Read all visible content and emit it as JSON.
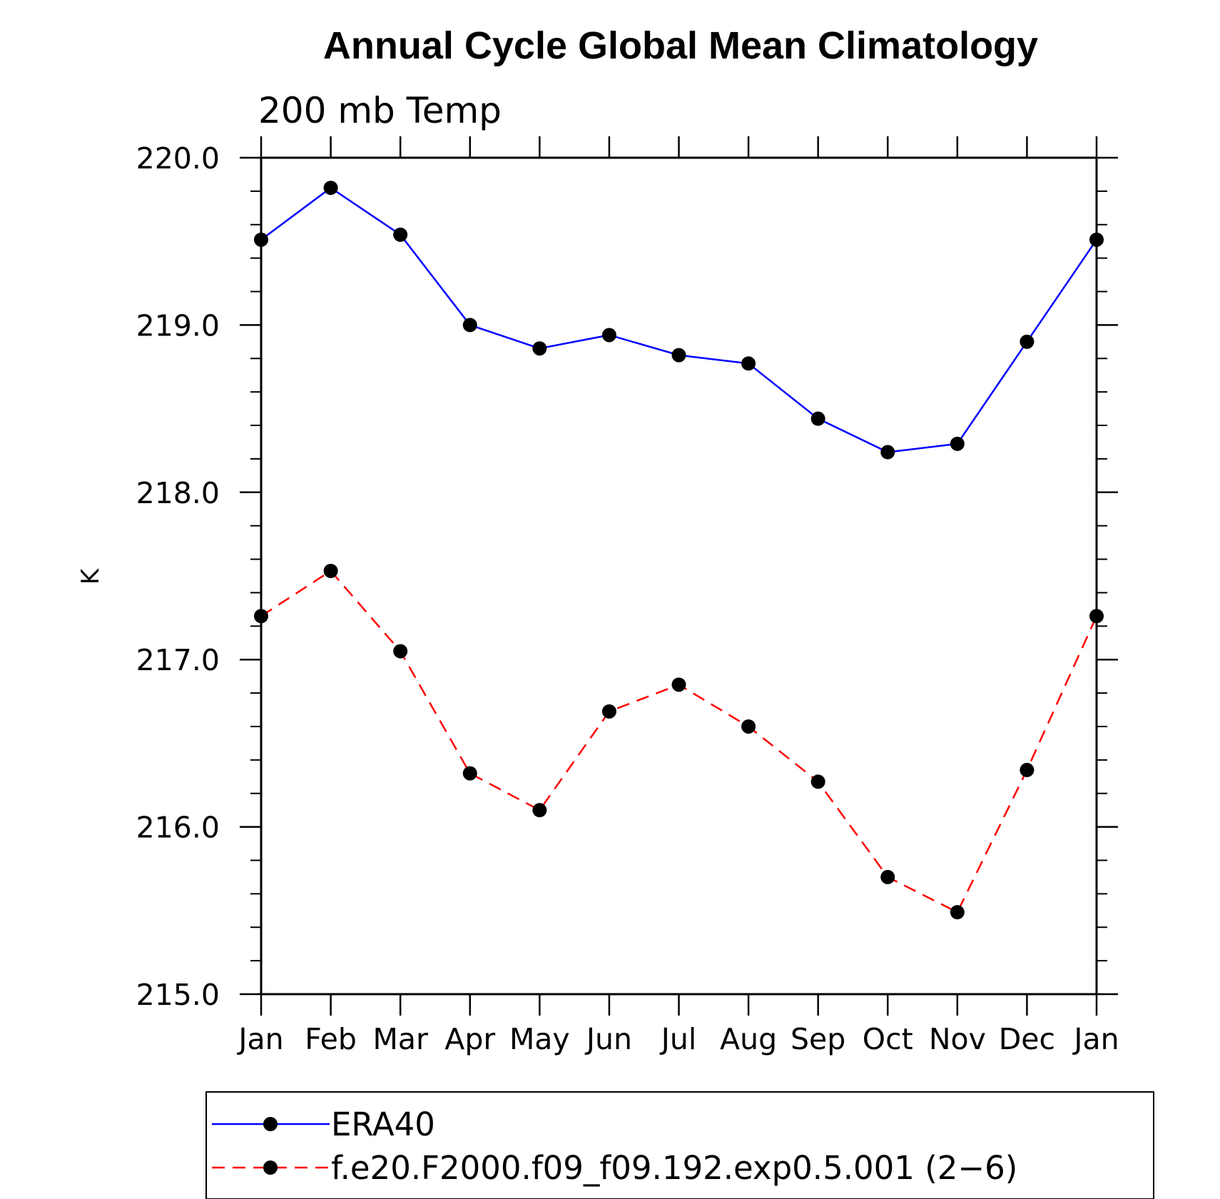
{
  "chart_data": {
    "type": "line",
    "title": "Annual Cycle Global Mean Climatology",
    "subtitle": "200 mb Temp",
    "xlabel": "",
    "ylabel": "K",
    "categories": [
      "Jan",
      "Feb",
      "Mar",
      "Apr",
      "May",
      "Jun",
      "Jul",
      "Aug",
      "Sep",
      "Oct",
      "Nov",
      "Dec",
      "Jan"
    ],
    "ylim": [
      215.0,
      220.0
    ],
    "yticks": [
      215.0,
      216.0,
      217.0,
      218.0,
      219.0,
      220.0
    ],
    "ytick_labels": [
      "215.0",
      "216.0",
      "217.0",
      "218.0",
      "219.0",
      "220.0"
    ],
    "ytick_minor_step": 0.2,
    "grid": false,
    "legend_position": "bottom",
    "series": [
      {
        "name": "ERA40",
        "color": "#0000ff",
        "dash": "solid",
        "marker": "filled-circle",
        "values": [
          219.51,
          219.82,
          219.54,
          219.0,
          218.86,
          218.94,
          218.82,
          218.77,
          218.44,
          218.24,
          218.29,
          218.9,
          219.51
        ]
      },
      {
        "name": "f.e20.F2000.f09_f09.192.exp0.5.001 (2−6)",
        "color": "#ff0000",
        "dash": "dashed",
        "marker": "filled-circle",
        "values": [
          217.26,
          217.53,
          217.05,
          216.32,
          216.1,
          216.69,
          216.85,
          216.6,
          216.27,
          215.7,
          215.49,
          216.34,
          217.26
        ]
      }
    ]
  }
}
